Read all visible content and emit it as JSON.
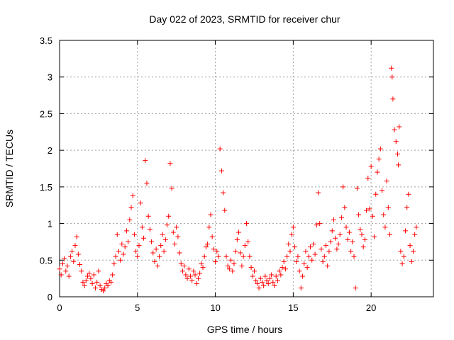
{
  "chart_data": {
    "type": "scatter",
    "title": "Day 022 of 2023, SRMTID for receiver chur",
    "xlabel": "GPS time / hours",
    "ylabel": "SRMTID / TECUs",
    "xlim": [
      0,
      24
    ],
    "ylim": [
      0,
      3.5
    ],
    "grid": true,
    "marker": "+",
    "color": "#ff0000",
    "xticks": [
      0,
      5,
      10,
      15,
      20
    ],
    "xtick_labels": [
      "0",
      "5",
      "10",
      "15",
      "20"
    ],
    "yticks": [
      0,
      0.5,
      1,
      1.5,
      2,
      2.5,
      3,
      3.5
    ],
    "ytick_labels": [
      "0",
      "0.5",
      "1",
      "1.5",
      "2",
      "2.5",
      "3",
      "3.5"
    ],
    "series": [
      {
        "name": "SRMTID",
        "points": [
          [
            0.0,
            0.38
          ],
          [
            0.1,
            0.3
          ],
          [
            0.2,
            0.45
          ],
          [
            0.3,
            0.52
          ],
          [
            0.4,
            0.35
          ],
          [
            0.5,
            0.42
          ],
          [
            0.6,
            0.28
          ],
          [
            0.7,
            0.55
          ],
          [
            0.8,
            0.62
          ],
          [
            0.9,
            0.48
          ],
          [
            1.0,
            0.7
          ],
          [
            1.1,
            0.82
          ],
          [
            1.2,
            0.58
          ],
          [
            1.3,
            0.44
          ],
          [
            1.4,
            0.35
          ],
          [
            1.5,
            0.2
          ],
          [
            1.6,
            0.15
          ],
          [
            1.7,
            0.22
          ],
          [
            1.8,
            0.28
          ],
          [
            1.9,
            0.32
          ],
          [
            2.0,
            0.25
          ],
          [
            2.1,
            0.18
          ],
          [
            2.2,
            0.3
          ],
          [
            2.3,
            0.12
          ],
          [
            2.4,
            0.2
          ],
          [
            2.5,
            0.35
          ],
          [
            2.6,
            0.15
          ],
          [
            2.7,
            0.1
          ],
          [
            2.8,
            0.08
          ],
          [
            2.9,
            0.12
          ],
          [
            3.0,
            0.18
          ],
          [
            3.1,
            0.15
          ],
          [
            3.2,
            0.22
          ],
          [
            3.3,
            0.2
          ],
          [
            3.4,
            0.3
          ],
          [
            3.5,
            0.45
          ],
          [
            3.6,
            0.55
          ],
          [
            3.7,
            0.85
          ],
          [
            3.8,
            0.62
          ],
          [
            3.9,
            0.5
          ],
          [
            4.0,
            0.72
          ],
          [
            4.1,
            0.58
          ],
          [
            4.2,
            0.68
          ],
          [
            4.3,
            0.9
          ],
          [
            4.4,
            0.75
          ],
          [
            4.5,
            1.05
          ],
          [
            4.6,
            1.22
          ],
          [
            4.7,
            1.38
          ],
          [
            4.8,
            0.85
          ],
          [
            4.9,
            0.62
          ],
          [
            5.0,
            0.55
          ],
          [
            5.1,
            0.7
          ],
          [
            5.2,
            1.28
          ],
          [
            5.3,
            0.95
          ],
          [
            5.4,
            0.8
          ],
          [
            5.5,
            1.86
          ],
          [
            5.6,
            1.55
          ],
          [
            5.7,
            1.1
          ],
          [
            5.8,
            0.92
          ],
          [
            5.9,
            0.75
          ],
          [
            6.0,
            0.6
          ],
          [
            6.1,
            0.48
          ],
          [
            6.2,
            0.65
          ],
          [
            6.3,
            0.42
          ],
          [
            6.4,
            0.55
          ],
          [
            6.5,
            0.7
          ],
          [
            6.6,
            0.85
          ],
          [
            6.7,
            0.62
          ],
          [
            6.8,
            0.78
          ],
          [
            6.9,
            0.98
          ],
          [
            7.0,
            1.1
          ],
          [
            7.1,
            1.82
          ],
          [
            7.2,
            1.48
          ],
          [
            7.3,
            0.88
          ],
          [
            7.4,
            0.72
          ],
          [
            7.5,
            0.95
          ],
          [
            7.6,
            0.82
          ],
          [
            7.7,
            0.6
          ],
          [
            7.8,
            0.45
          ],
          [
            7.9,
            0.35
          ],
          [
            8.0,
            0.42
          ],
          [
            8.1,
            0.3
          ],
          [
            8.2,
            0.25
          ],
          [
            8.3,
            0.38
          ],
          [
            8.4,
            0.28
          ],
          [
            8.5,
            0.22
          ],
          [
            8.6,
            0.35
          ],
          [
            8.7,
            0.3
          ],
          [
            8.8,
            0.18
          ],
          [
            8.9,
            0.25
          ],
          [
            9.0,
            0.32
          ],
          [
            9.1,
            0.45
          ],
          [
            9.2,
            0.4
          ],
          [
            9.3,
            0.55
          ],
          [
            9.4,
            0.68
          ],
          [
            9.5,
            0.72
          ],
          [
            9.6,
            0.95
          ],
          [
            9.7,
            1.12
          ],
          [
            9.8,
            0.82
          ],
          [
            9.9,
            0.65
          ],
          [
            10.0,
            0.48
          ],
          [
            10.1,
            0.62
          ],
          [
            10.2,
            0.55
          ],
          [
            10.3,
            2.02
          ],
          [
            10.4,
            1.72
          ],
          [
            10.5,
            1.42
          ],
          [
            10.6,
            1.18
          ],
          [
            10.7,
            0.55
          ],
          [
            10.8,
            0.42
          ],
          [
            10.9,
            0.38
          ],
          [
            11.0,
            0.5
          ],
          [
            11.1,
            0.35
          ],
          [
            11.2,
            0.45
          ],
          [
            11.3,
            0.62
          ],
          [
            11.4,
            0.78
          ],
          [
            11.5,
            0.88
          ],
          [
            11.6,
            0.6
          ],
          [
            11.7,
            0.42
          ],
          [
            11.8,
            0.55
          ],
          [
            11.9,
            0.7
          ],
          [
            12.0,
            1.0
          ],
          [
            12.1,
            0.75
          ],
          [
            12.2,
            0.55
          ],
          [
            12.3,
            0.4
          ],
          [
            12.4,
            0.28
          ],
          [
            12.5,
            0.35
          ],
          [
            12.6,
            0.22
          ],
          [
            12.7,
            0.18
          ],
          [
            12.8,
            0.12
          ],
          [
            12.9,
            0.25
          ],
          [
            13.0,
            0.2
          ],
          [
            13.1,
            0.15
          ],
          [
            13.2,
            0.28
          ],
          [
            13.3,
            0.22
          ],
          [
            13.4,
            0.18
          ],
          [
            13.5,
            0.25
          ],
          [
            13.6,
            0.3
          ],
          [
            13.7,
            0.2
          ],
          [
            13.8,
            0.15
          ],
          [
            13.9,
            0.28
          ],
          [
            14.0,
            0.22
          ],
          [
            14.1,
            0.35
          ],
          [
            14.2,
            0.3
          ],
          [
            14.3,
            0.4
          ],
          [
            14.4,
            0.48
          ],
          [
            14.5,
            0.38
          ],
          [
            14.6,
            0.55
          ],
          [
            14.7,
            0.72
          ],
          [
            14.8,
            0.62
          ],
          [
            14.9,
            0.85
          ],
          [
            15.0,
            0.95
          ],
          [
            15.1,
            0.68
          ],
          [
            15.2,
            0.48
          ],
          [
            15.3,
            0.55
          ],
          [
            15.4,
            0.35
          ],
          [
            15.5,
            0.12
          ],
          [
            15.6,
            0.28
          ],
          [
            15.7,
            0.45
          ],
          [
            15.8,
            0.62
          ],
          [
            15.9,
            0.4
          ],
          [
            16.0,
            0.55
          ],
          [
            16.1,
            0.68
          ],
          [
            16.2,
            0.5
          ],
          [
            16.3,
            0.72
          ],
          [
            16.4,
            0.58
          ],
          [
            16.5,
            0.98
          ],
          [
            16.6,
            1.42
          ],
          [
            16.7,
            1.0
          ],
          [
            16.8,
            0.65
          ],
          [
            16.9,
            0.48
          ],
          [
            17.0,
            0.55
          ],
          [
            17.1,
            0.7
          ],
          [
            17.2,
            0.42
          ],
          [
            17.3,
            0.62
          ],
          [
            17.4,
            0.75
          ],
          [
            17.5,
            0.9
          ],
          [
            17.6,
            1.05
          ],
          [
            17.7,
            0.8
          ],
          [
            17.8,
            0.65
          ],
          [
            17.9,
            0.72
          ],
          [
            18.0,
            0.85
          ],
          [
            18.1,
            1.08
          ],
          [
            18.2,
            1.5
          ],
          [
            18.3,
            1.22
          ],
          [
            18.4,
            0.95
          ],
          [
            18.5,
            0.78
          ],
          [
            18.6,
            0.88
          ],
          [
            18.7,
            0.62
          ],
          [
            18.8,
            0.75
          ],
          [
            18.9,
            0.55
          ],
          [
            19.0,
            0.12
          ],
          [
            19.1,
            1.48
          ],
          [
            19.2,
            1.12
          ],
          [
            19.3,
            0.92
          ],
          [
            19.4,
            0.85
          ],
          [
            19.5,
            0.68
          ],
          [
            19.6,
            0.78
          ],
          [
            19.7,
            1.18
          ],
          [
            19.8,
            1.62
          ],
          [
            19.9,
            1.2
          ],
          [
            20.0,
            1.78
          ],
          [
            20.1,
            1.1
          ],
          [
            20.2,
            0.82
          ],
          [
            20.3,
            1.4
          ],
          [
            20.4,
            1.7
          ],
          [
            20.5,
            1.88
          ],
          [
            20.6,
            2.02
          ],
          [
            20.7,
            1.45
          ],
          [
            20.8,
            1.12
          ],
          [
            20.9,
            0.95
          ],
          [
            21.0,
            1.58
          ],
          [
            21.1,
            1.22
          ],
          [
            21.2,
            0.85
          ],
          [
            21.3,
            3.12
          ],
          [
            21.35,
            3.0
          ],
          [
            21.4,
            2.7
          ],
          [
            21.5,
            2.28
          ],
          [
            21.6,
            2.12
          ],
          [
            21.7,
            1.95
          ],
          [
            21.75,
            1.8
          ],
          [
            21.8,
            2.32
          ],
          [
            21.9,
            0.62
          ],
          [
            22.0,
            0.45
          ],
          [
            22.1,
            0.55
          ],
          [
            22.2,
            0.9
          ],
          [
            22.3,
            1.22
          ],
          [
            22.4,
            1.4
          ],
          [
            22.5,
            0.7
          ],
          [
            22.6,
            0.48
          ],
          [
            22.7,
            0.62
          ],
          [
            22.8,
            0.85
          ],
          [
            22.9,
            0.95
          ]
        ]
      }
    ]
  }
}
